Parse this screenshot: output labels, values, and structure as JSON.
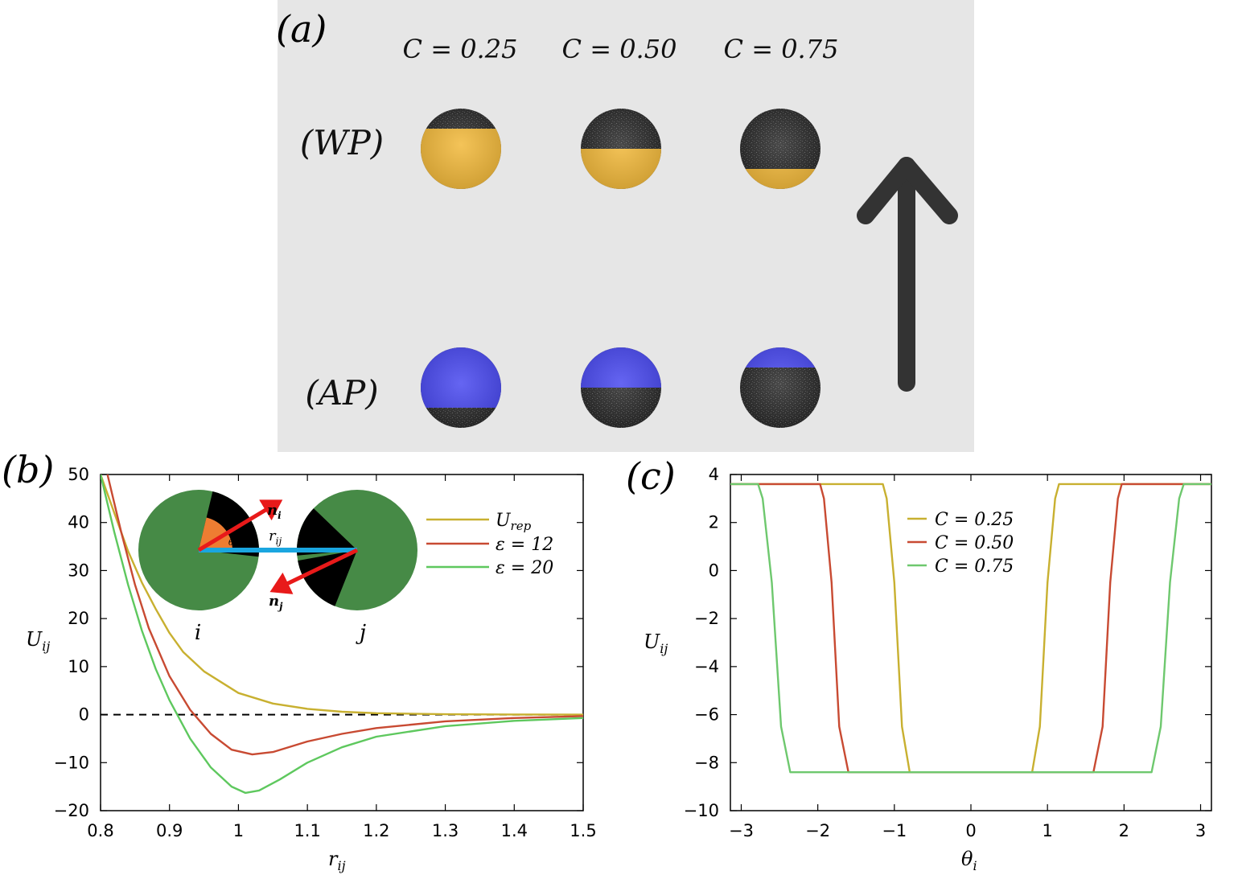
{
  "panels": {
    "a": {
      "letter": "(a)",
      "columns": [
        "C = 0.25",
        "C = 0.50",
        "C = 0.75"
      ],
      "rows": [
        "(WP)",
        "(AP)"
      ],
      "cap_fraction": [
        0.25,
        0.5,
        0.75
      ],
      "colors": {
        "background": "#e6e6e6",
        "wp": "#f2b93b",
        "ap": "#4a4af0",
        "sphere": "#2b2b2b",
        "arrow": "#333333"
      }
    },
    "b": {
      "letter": "(b)",
      "inset": {
        "i_label": "i",
        "j_label": "j",
        "n_i": "n_i",
        "n_j": "n_j",
        "r_ij": "r_ij",
        "theta": "θ_i",
        "colors": {
          "disk": "#468a46",
          "patch": "#000000",
          "angle": "#ee7d32",
          "bond": "#1aa6e0",
          "arrow": "#e81a1a"
        }
      }
    },
    "c": {
      "letter": "(c)"
    }
  },
  "chart_data": [
    {
      "type": "line",
      "panel": "b",
      "xlabel": "r_ij",
      "ylabel": "U_ij",
      "xlim": [
        0.8,
        1.5
      ],
      "ylim": [
        -20,
        50
      ],
      "xticks": [
        "0.8",
        "0.9",
        "1",
        "1.1",
        "1.2",
        "1.3",
        "1.4",
        "1.5"
      ],
      "yticks": [
        "50",
        "40",
        "30",
        "20",
        "10",
        "0",
        "−10",
        "−20"
      ],
      "reference_line": {
        "y": 0,
        "style": "dashed"
      },
      "series": [
        {
          "name": "U_rep",
          "legend": "U_rep",
          "color": "#c8b030",
          "x": [
            0.8,
            0.82,
            0.84,
            0.86,
            0.88,
            0.9,
            0.92,
            0.95,
            1.0,
            1.05,
            1.1,
            1.15,
            1.2,
            1.3,
            1.4,
            1.5
          ],
          "y": [
            50,
            42,
            34,
            27.5,
            22,
            17,
            13,
            9,
            4.5,
            2.3,
            1.2,
            0.6,
            0.3,
            0.08,
            0.02,
            0.0
          ]
        },
        {
          "name": "eps12",
          "legend": "ε = 12",
          "color": "#c84a32",
          "x": [
            0.81,
            0.83,
            0.85,
            0.87,
            0.9,
            0.93,
            0.96,
            0.99,
            1.02,
            1.05,
            1.1,
            1.15,
            1.2,
            1.3,
            1.4,
            1.5
          ],
          "y": [
            50,
            38,
            27,
            18,
            8,
            1,
            -4,
            -7.3,
            -8.3,
            -7.8,
            -5.6,
            -4.0,
            -2.8,
            -1.4,
            -0.7,
            -0.3
          ]
        },
        {
          "name": "eps20",
          "legend": "ε = 20",
          "color": "#5ec85e",
          "x": [
            0.8,
            0.82,
            0.84,
            0.86,
            0.88,
            0.9,
            0.93,
            0.96,
            0.99,
            1.01,
            1.03,
            1.06,
            1.1,
            1.15,
            1.2,
            1.3,
            1.4,
            1.5
          ],
          "y": [
            50,
            38,
            27,
            17.5,
            9.5,
            3,
            -5,
            -11,
            -15,
            -16.3,
            -15.8,
            -13.5,
            -10,
            -6.8,
            -4.6,
            -2.4,
            -1.3,
            -0.7
          ]
        }
      ]
    },
    {
      "type": "line",
      "panel": "c",
      "xlabel": "θ_i",
      "ylabel": "U_ij",
      "xlim": [
        -3.1416,
        3.1416
      ],
      "ylim": [
        -10,
        4
      ],
      "xticks": [
        "−3",
        "−2",
        "−1",
        "0",
        "1",
        "2",
        "3"
      ],
      "yticks": [
        "4",
        "2",
        "0",
        "−2",
        "−4",
        "−6",
        "−8",
        "−10"
      ],
      "series": [
        {
          "name": "C025",
          "legend": "C = 0.25",
          "color": "#c8b030",
          "x": [
            -3.1416,
            -1.15,
            -1.1,
            -1.0,
            -0.9,
            -0.8,
            0.8,
            0.9,
            1.0,
            1.1,
            1.15,
            3.1416
          ],
          "y": [
            3.6,
            3.6,
            3.0,
            -0.5,
            -6.5,
            -8.4,
            -8.4,
            -6.5,
            -0.5,
            3.0,
            3.6,
            3.6
          ]
        },
        {
          "name": "C050",
          "legend": "C = 0.50",
          "color": "#c84a32",
          "x": [
            -3.1416,
            -1.97,
            -1.92,
            -1.82,
            -1.72,
            -1.6,
            1.6,
            1.72,
            1.82,
            1.92,
            1.97,
            3.1416
          ],
          "y": [
            3.6,
            3.6,
            3.0,
            -0.5,
            -6.5,
            -8.4,
            -8.4,
            -6.5,
            -0.5,
            3.0,
            3.6,
            3.6
          ]
        },
        {
          "name": "C075",
          "legend": "C = 0.75",
          "color": "#6ec86e",
          "x": [
            -3.1416,
            -2.78,
            -2.72,
            -2.6,
            -2.48,
            -2.36,
            2.36,
            2.48,
            2.6,
            2.72,
            2.78,
            3.1416
          ],
          "y": [
            3.6,
            3.6,
            3.0,
            -0.5,
            -6.5,
            -8.4,
            -8.4,
            -6.5,
            -0.5,
            3.0,
            3.6,
            3.6
          ]
        }
      ]
    }
  ]
}
